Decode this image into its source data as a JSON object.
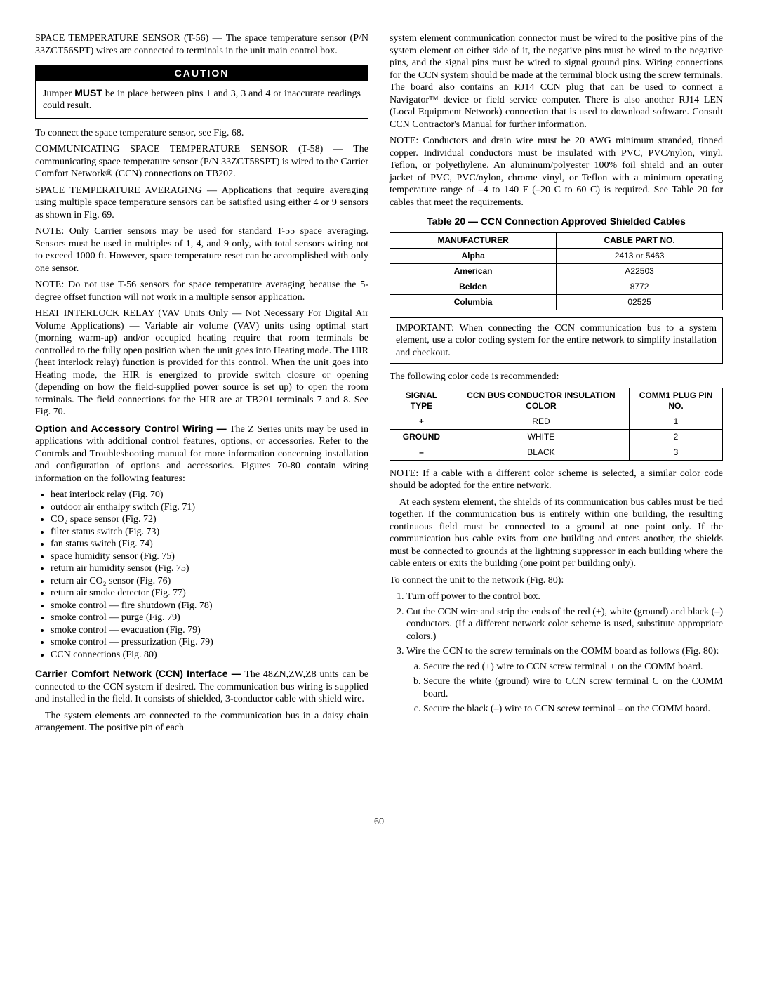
{
  "left": {
    "p1": "SPACE TEMPERATURE SENSOR (T-56) — The space temperature sensor (P/N 33ZCT56SPT) wires are connected to terminals in the unit main control box.",
    "caution_label": "CAUTION",
    "caution_body_pre": "Jumper ",
    "caution_must": "MUST",
    "caution_body_post": " be in place between pins 1 and 3, 3 and 4 or inaccurate readings could result.",
    "p2": "To connect the space temperature sensor, see Fig. 68.",
    "p3": "COMMUNICATING SPACE TEMPERATURE SENSOR (T-58) — The communicating space temperature sensor (P/N 33ZCT58SPT) is wired to the Carrier Comfort Network® (CCN) connections on TB202.",
    "p4": "SPACE TEMPERATURE AVERAGING — Applications that require averaging using multiple space temperature sensors can be satisfied using either 4 or 9 sensors as shown in Fig. 69.",
    "p5": "NOTE: Only Carrier sensors may be used for standard T-55 space averaging. Sensors must be used in multiples of 1, 4, and 9 only, with total sensors wiring not to exceed 1000 ft. However, space temperature reset can be accomplished with only one sensor.",
    "p6": "NOTE: Do not use T-56 sensors for space temperature averaging because the 5-degree offset function will not work in a multiple sensor application.",
    "p7": "HEAT INTERLOCK RELAY (VAV Units Only — Not Necessary For Digital Air Volume Applications) — Variable air volume (VAV) units using optimal start (morning warm-up) and/or occupied heating require that room terminals be controlled to the fully open position when the unit goes into Heating mode. The HIR (heat interlock relay) function is provided for this control. When the unit goes into Heating mode, the HIR is energized to provide switch closure or opening (depending on how the field-supplied power source is set up) to open the room terminals. The field connections for the HIR are at TB201 terminals 7 and 8. See Fig. 70.",
    "h1": "Option and Accessory Control Wiring —",
    "h1_tail": " The Z Series units may be used in applications with additional control features, options, or accessories. Refer to the Controls and Troubleshooting manual for more information concerning installation and configuration of options and accessories. Figures 70-80 contain wiring information on the following features:",
    "features": [
      "heat interlock relay (Fig. 70)",
      "outdoor air enthalpy switch (Fig. 71)",
      "CO₂ space sensor (Fig. 72)",
      "filter status switch (Fig. 73)",
      "fan status switch (Fig. 74)",
      "space humidity sensor (Fig. 75)",
      "return air humidity sensor (Fig. 75)",
      "return air CO₂ sensor (Fig. 76)",
      "return air smoke detector (Fig. 77)",
      "smoke control — fire shutdown (Fig. 78)",
      "smoke control — purge (Fig. 79)",
      "smoke control — evacuation (Fig. 79)",
      "smoke control — pressurization (Fig. 79)",
      "CCN connections (Fig. 80)"
    ],
    "h2": "Carrier Comfort Network (CCN) Interface —",
    "h2_tail": " The 48ZN,ZW,Z8 units can be connected to the CCN system if desired. The communication bus wiring is supplied and installed in the field. It consists of shielded, 3-conductor cable with shield wire.",
    "p8": "The system elements are connected to the communication bus in a daisy chain arrangement. The positive pin of each"
  },
  "right": {
    "p1": "system element communication connector must be wired to the positive pins of the system element on either side of it, the negative pins must be wired to the negative pins, and the signal pins must be wired to signal ground pins. Wiring connections for the CCN system should be made at the terminal block using the screw terminals. The board also contains an RJ14 CCN plug that can be used to connect a Navigator™ device or field service computer. There is also another RJ14 LEN (Local Equipment Network) connection that is used to download software. Consult CCN Contractor's Manual for further information.",
    "p2": "NOTE: Conductors and drain wire must be 20 AWG minimum stranded, tinned copper. Individual conductors must be insulated with PVC, PVC/nylon, vinyl, Teflon, or polyethylene. An aluminum/polyester 100% foil shield and an outer jacket of PVC, PVC/nylon, chrome vinyl, or Teflon with a minimum operating temperature range of –4 to 140 F (–20 C to 60 C) is required. See Table 20 for cables that meet the requirements.",
    "table20_title": "Table 20 — CCN Connection Approved Shielded Cables",
    "table20": {
      "headers": [
        "MANUFACTURER",
        "CABLE PART NO."
      ],
      "rows": [
        [
          "Alpha",
          "2413 or 5463"
        ],
        [
          "American",
          "A22503"
        ],
        [
          "Belden",
          "8772"
        ],
        [
          "Columbia",
          "02525"
        ]
      ]
    },
    "important": "IMPORTANT: When connecting the CCN communication bus to a system element, use a color coding system for the entire network to simplify installation and checkout.",
    "p3": "The following color code is recommended:",
    "table_cc": {
      "headers": [
        "SIGNAL TYPE",
        "CCN BUS CONDUCTOR INSULATION COLOR",
        "COMM1 PLUG PIN NO."
      ],
      "rows": [
        [
          "+",
          "RED",
          "1"
        ],
        [
          "GROUND",
          "WHITE",
          "2"
        ],
        [
          "–",
          "BLACK",
          "3"
        ]
      ]
    },
    "p4": "NOTE: If a cable with a different color scheme is selected, a similar color code should be adopted for the entire network.",
    "p5": "At each system element, the shields of its communication bus cables must be tied together. If the communication bus is entirely within one building, the resulting continuous field must be connected to a ground at one point only. If the communication bus cable exits from one building and enters another, the shields must be connected to grounds at the lightning suppressor in each building where the cable enters or exits the building (one point per building only).",
    "p6": "To connect the unit to the network (Fig. 80):",
    "ol": [
      "Turn off power to the control box.",
      "Cut the CCN wire and strip the ends of the red (+), white (ground) and black (–) conductors. (If a different network color scheme is used, substitute appropriate colors.)",
      "Wire the CCN to the screw terminals on the COMM board as follows (Fig. 80):"
    ],
    "ol_sub": [
      "Secure the red (+) wire to CCN screw terminal + on the COMM board.",
      "Secure the white (ground) wire to CCN screw terminal C on the COMM board.",
      "Secure the black (–) wire to CCN screw terminal – on the COMM board."
    ]
  },
  "page_number": "60"
}
